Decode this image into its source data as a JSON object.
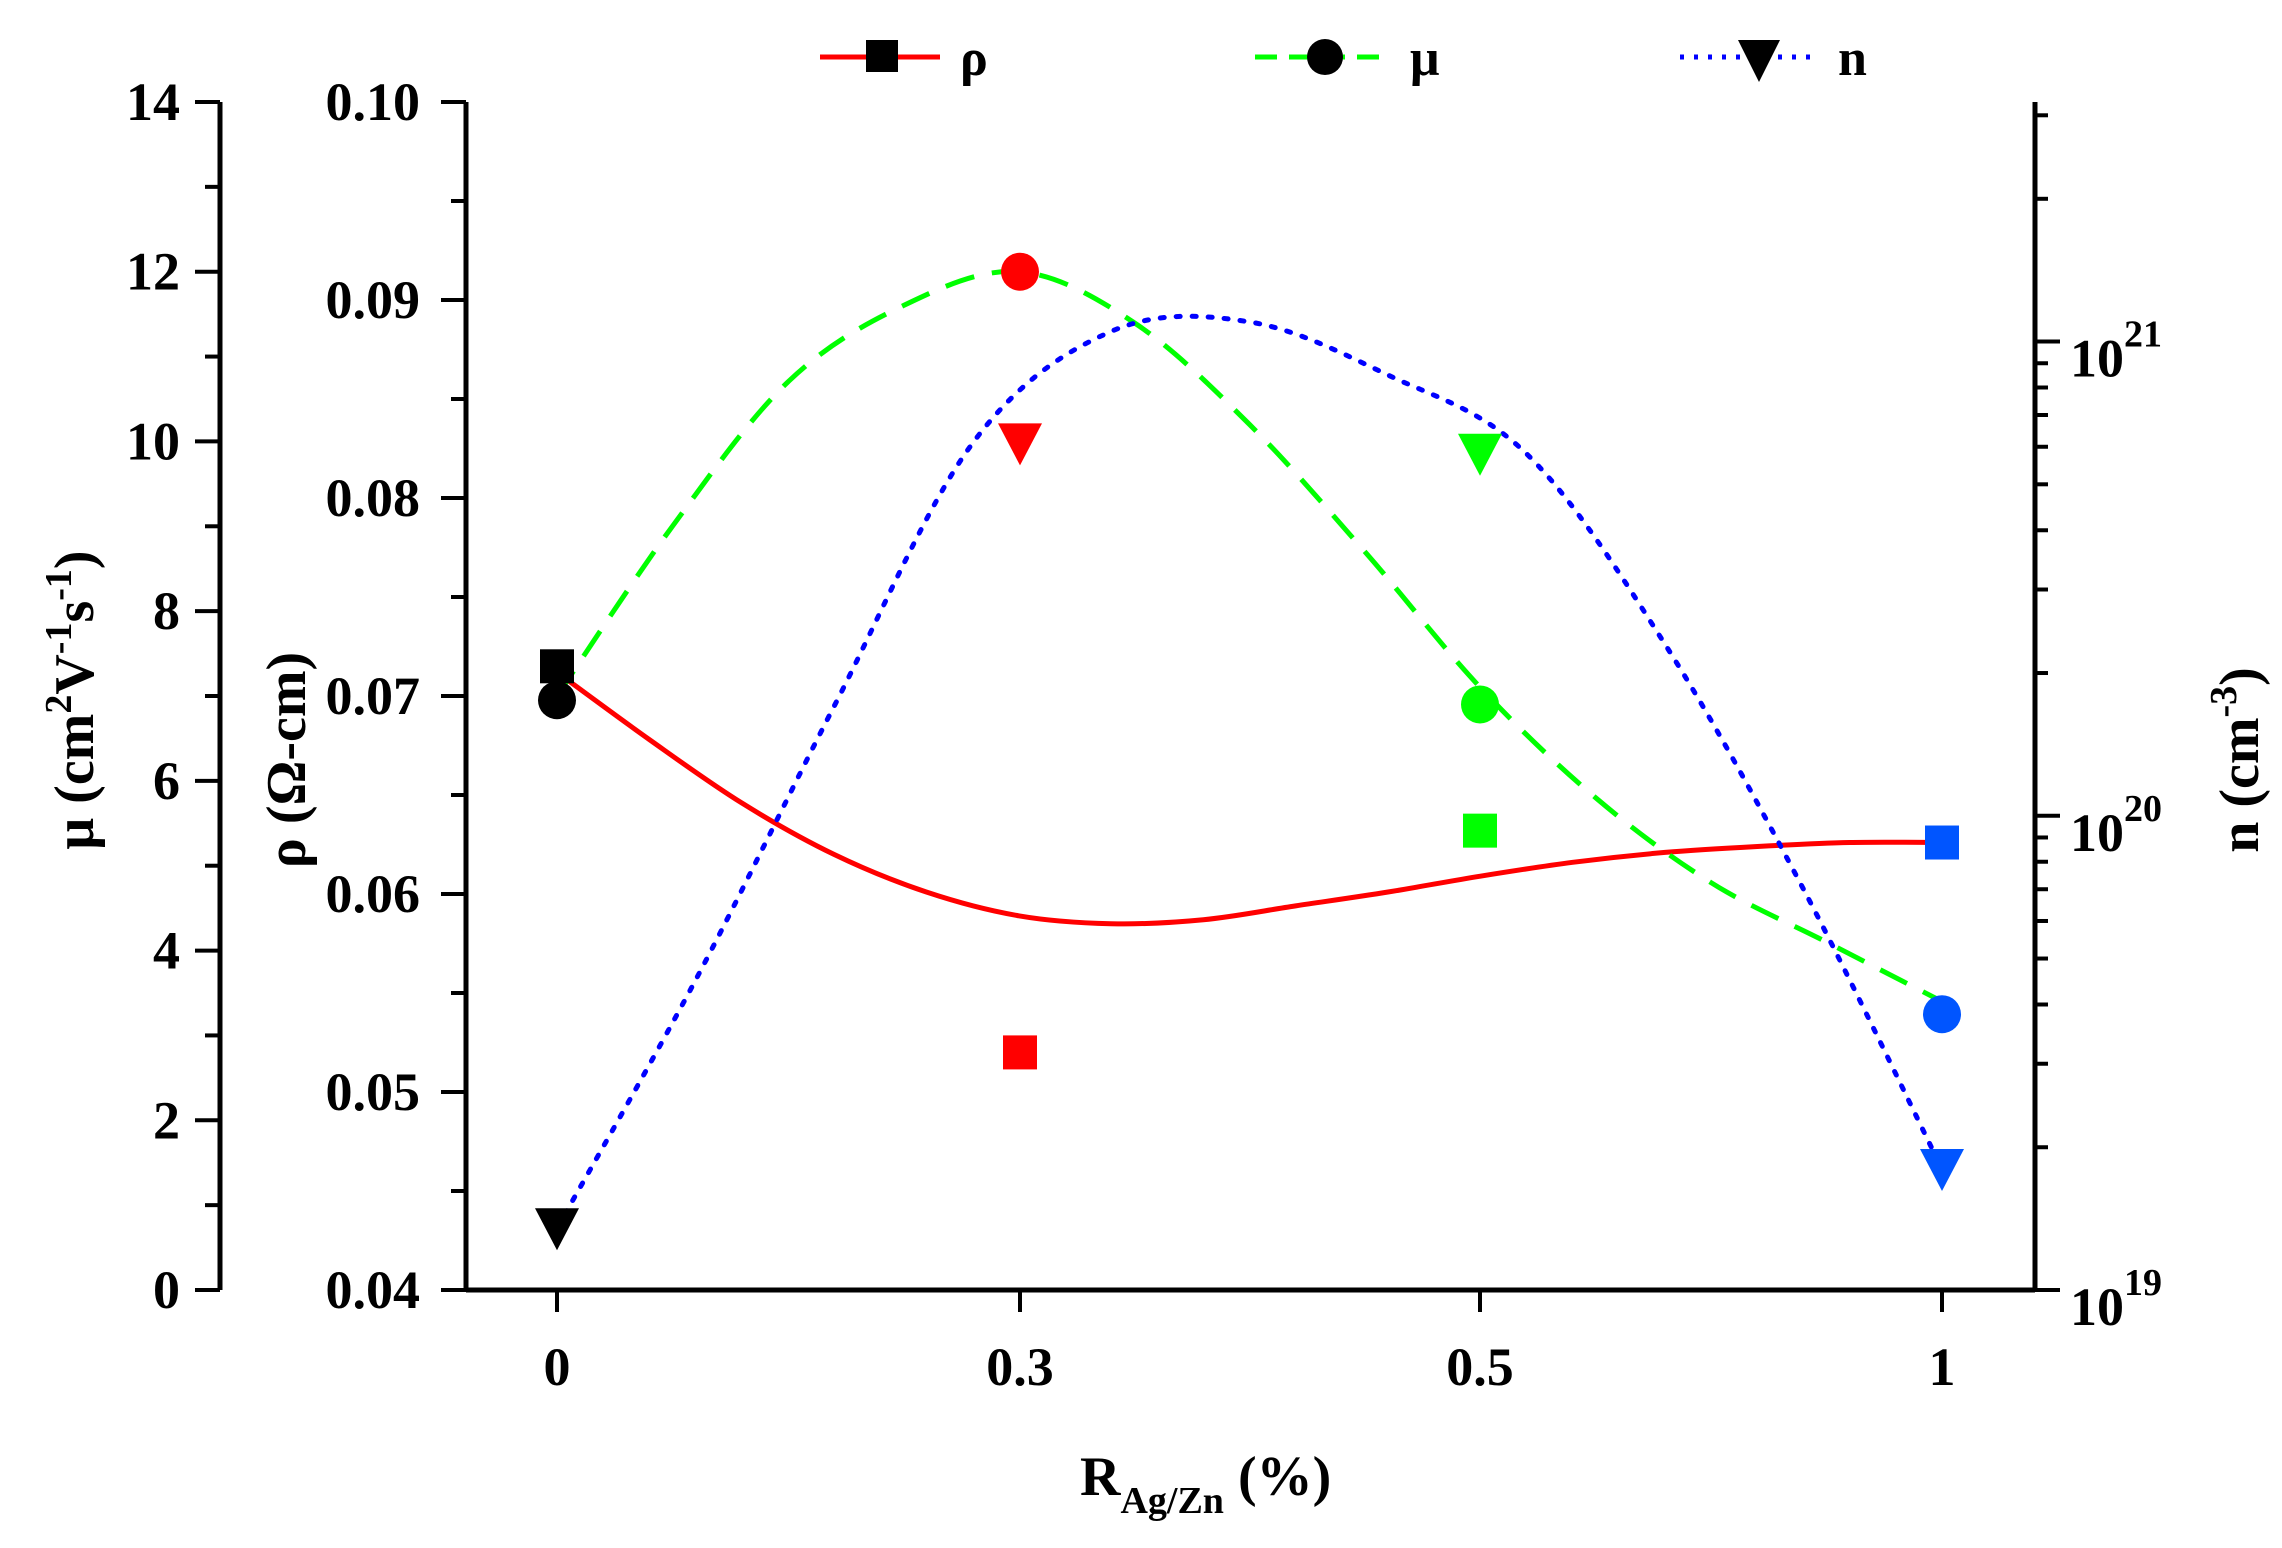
{
  "chart_data": {
    "type": "scatter",
    "xlabel": {
      "main": "R",
      "sub": "Ag/Zn",
      "unit": " (%)"
    },
    "categories": [
      "0",
      "0.3",
      "0.5",
      "1"
    ],
    "axes": {
      "mu": {
        "label": "μ (cm²V⁻¹s⁻¹)",
        "label_parts": {
          "a": "μ (cm",
          "b": "2",
          "c": "V",
          "d": "-1",
          "e": "s",
          "f": "-1",
          "g": ")"
        },
        "ylim": [
          0,
          14
        ],
        "ticks": [
          "0",
          "2",
          "4",
          "6",
          "8",
          "10",
          "12",
          "14"
        ]
      },
      "rho": {
        "label": "ρ (Ω-cm)",
        "ylim": [
          0.04,
          0.1
        ],
        "ticks": [
          "0.04",
          "0.05",
          "0.06",
          "0.07",
          "0.08",
          "0.09",
          "0.10"
        ]
      },
      "n": {
        "label": "n (cm⁻³)",
        "label_parts": {
          "a": "n (cm",
          "b": "-3",
          "c": ")"
        },
        "scale": "log",
        "ylim": [
          1e+19,
          3.2e+21
        ],
        "ticks": [
          {
            "base": "10",
            "exp": "19",
            "value": 1e+19
          },
          {
            "base": "10",
            "exp": "20",
            "value": 1e+20
          },
          {
            "base": "10",
            "exp": "21",
            "value": 1e+21
          }
        ]
      }
    },
    "legend": [
      {
        "name": "ρ",
        "marker": "square",
        "line": "solid",
        "color": "#ff0000"
      },
      {
        "name": "μ",
        "marker": "circle",
        "line": "dashed",
        "color": "#00ff00"
      },
      {
        "name": "n",
        "marker": "triangle-down",
        "line": "dotted",
        "color": "#0000ff"
      }
    ],
    "point_colors": [
      "#000000",
      "#ff0000",
      "#00ff00",
      "#0055ff"
    ],
    "series": [
      {
        "name": "ρ",
        "axis": "rho",
        "values": [
          0.0715,
          0.052,
          0.0632,
          0.0626
        ],
        "fit_color": "#ff0000",
        "fit": [
          0.0712,
          0.0678,
          0.0646,
          0.062,
          0.0601,
          0.0589,
          0.0585,
          0.0587,
          0.0594,
          0.0601,
          0.0609,
          0.0616,
          0.0621,
          0.0624,
          0.0626,
          0.0626
        ]
      },
      {
        "name": "μ",
        "axis": "mu",
        "values": [
          6.95,
          12.0,
          6.9,
          3.25
        ],
        "fit_color": "#00ff00",
        "fit": [
          7.0,
          9.0,
          10.7,
          11.6,
          12.0,
          11.4,
          10.2,
          8.7,
          7.1,
          5.8,
          4.8,
          4.1,
          3.4
        ]
      },
      {
        "name": "n",
        "axis": "n",
        "values": [
          1.35e+19,
          6.1e+20,
          5.8e+20,
          1.8e+19
        ],
        "fit_color": "#0000ff",
        "fit": [
          1.35e+19,
          4.5e+19,
          1.7e+20,
          6.1e+20,
          1.05e+21,
          1.1e+21,
          8.5e+20,
          5.8e+20,
          2.3e+20,
          7e+19,
          1.8e+19
        ]
      }
    ]
  }
}
